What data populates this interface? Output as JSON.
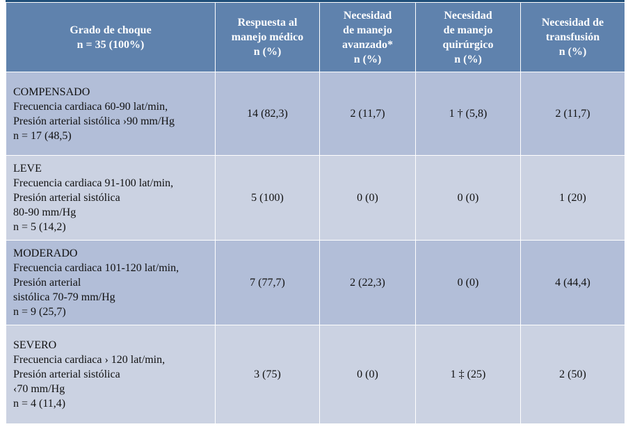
{
  "header": {
    "col1": [
      "Grado de choque",
      "n = 35 (100%)"
    ],
    "col2": [
      "Respuesta al",
      "manejo médico",
      "n (%)"
    ],
    "col3": [
      "Necesidad",
      "de manejo",
      "avanzado*",
      "n (%)"
    ],
    "col4": [
      "Necesidad",
      "de manejo",
      "quirúrgico",
      "n (%)"
    ],
    "col5": [
      "Necesidad de",
      "transfusión",
      "n (%)"
    ]
  },
  "rows": [
    {
      "grade": [
        "COMPENSADO",
        "Frecuencia cardiaca 60-90 lat/min,",
        "Presión arterial sistólica ›90 mm/Hg",
        "n = 17 (48,5)"
      ],
      "values": [
        "14 (82,3)",
        "2 (11,7)",
        "1 † (5,8)",
        "2 (11,7)"
      ]
    },
    {
      "grade": [
        "LEVE",
        "Frecuencia cardiaca 91-100 lat/min,",
        "Presión arterial sistólica",
        "80-90 mm/Hg",
        "n = 5 (14,2)"
      ],
      "values": [
        "5 (100)",
        "0 (0)",
        "0 (0)",
        "1 (20)"
      ]
    },
    {
      "grade": [
        "MODERADO",
        "Frecuencia cardiaca 101-120 lat/min,",
        "Presión arterial",
        "sistólica 70-79 mm/Hg",
        "n = 9 (25,7)"
      ],
      "values": [
        "7 (77,7)",
        "2 (22,3)",
        "0 (0)",
        "4 (44,4)"
      ]
    },
    {
      "grade": [
        "SEVERO",
        "Frecuencia cardiaca › 120 lat/min,",
        "Presión arterial sistólica",
        "‹70 mm/Hg",
        "n = 4 (11,4)"
      ],
      "values": [
        "3 (75)",
        "0 (0)",
        "1 ‡ (25)",
        "2 (50)"
      ]
    }
  ],
  "colors": {
    "header_bg": "#5f82ad",
    "row_odd": "#b2bed8",
    "row_even": "#cbd2e2",
    "top_rule": "#1f4e79"
  }
}
